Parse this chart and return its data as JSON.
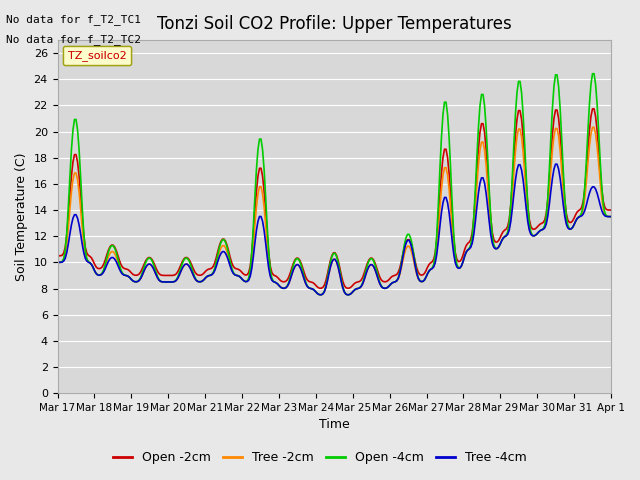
{
  "title": "Tonzi Soil CO2 Profile: Upper Temperatures",
  "ylabel": "Soil Temperature (C)",
  "xlabel": "Time",
  "annotation1": "No data for f_T2_TC1",
  "annotation2": "No data for f_T2_TC2",
  "legend_box_label": "TZ_soilco2",
  "ylim": [
    0,
    27
  ],
  "yticks": [
    0,
    2,
    4,
    6,
    8,
    10,
    12,
    14,
    16,
    18,
    20,
    22,
    24,
    26
  ],
  "x_tick_labels": [
    "Mar 17",
    "Mar 18",
    "Mar 19",
    "Mar 20",
    "Mar 21",
    "Mar 22",
    "Mar 23",
    "Mar 24",
    "Mar 25",
    "Mar 26",
    "Mar 27",
    "Mar 28",
    "Mar 29",
    "Mar 30",
    "Mar 31",
    "Apr 1"
  ],
  "line_colors": [
    "#cc0000",
    "#ff8800",
    "#00cc00",
    "#0000cc"
  ],
  "line_labels": [
    "Open -2cm",
    "Tree -2cm",
    "Open -4cm",
    "Tree -4cm"
  ],
  "background_color": "#e8e8e8",
  "plot_bg_color": "#d8d8d8",
  "n_days": 15
}
